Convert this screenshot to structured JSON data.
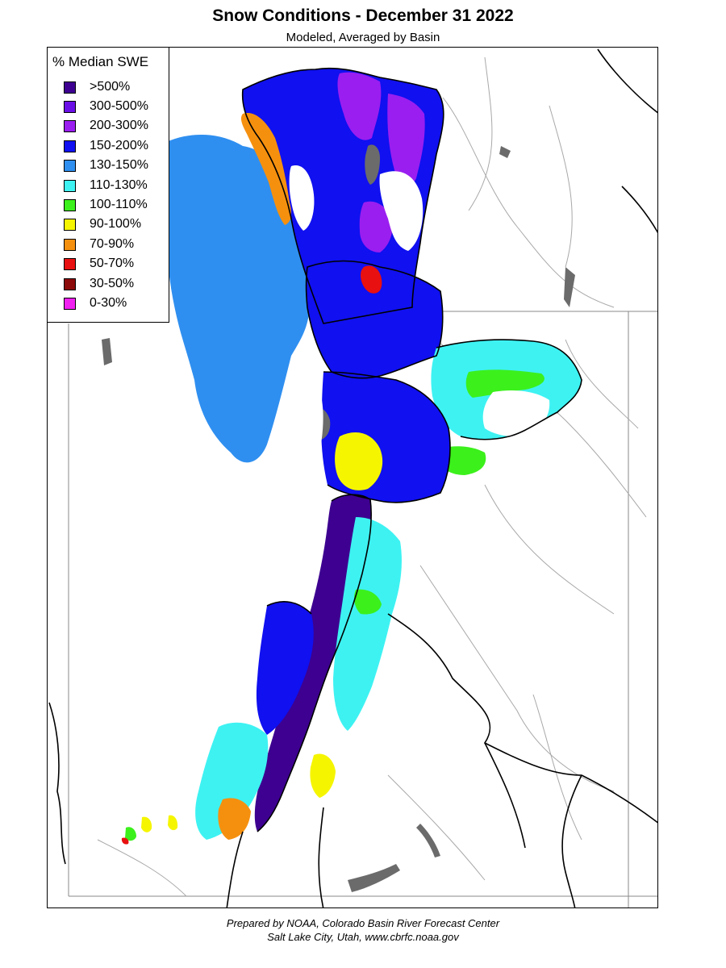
{
  "title": "Snow Conditions - December 31 2022",
  "subtitle": "Modeled, Averaged by Basin",
  "legend": {
    "title": "% Median SWE",
    "items": [
      {
        "label": ">500%",
        "color": "#3d0090"
      },
      {
        "label": "300-500%",
        "color": "#6a0fe6"
      },
      {
        "label": "200-300%",
        "color": "#9a1ef0"
      },
      {
        "label": "150-200%",
        "color": "#1010f0"
      },
      {
        "label": "130-150%",
        "color": "#2f8ff0"
      },
      {
        "label": "110-130%",
        "color": "#3ef2f2"
      },
      {
        "label": "100-110%",
        "color": "#3cf01c"
      },
      {
        "label": "90-100%",
        "color": "#f5f500"
      },
      {
        "label": "70-90%",
        "color": "#f5900f"
      },
      {
        "label": "50-70%",
        "color": "#e81010"
      },
      {
        "label": "30-50%",
        "color": "#8c0a0a"
      },
      {
        "label": "0-30%",
        "color": "#f020f0"
      }
    ]
  },
  "colors": {
    "lake": "#6b6b6b",
    "boundary": "#000000",
    "river": "#a8a8a8",
    "state_line": "#8a8a8a"
  },
  "credits": {
    "line1": "Prepared by NOAA, Colorado Basin River Forecast Center",
    "line2": "Salt Lake City, Utah, www.cbrfc.noaa.gov"
  }
}
